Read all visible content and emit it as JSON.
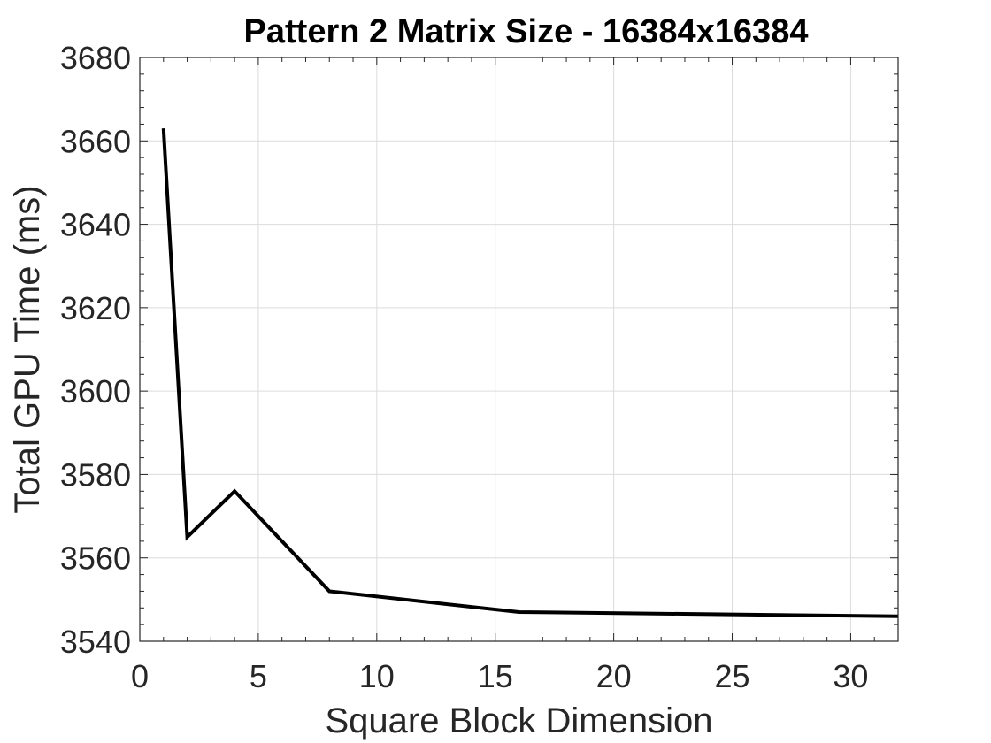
{
  "chart_data": {
    "type": "line",
    "title": "Pattern 2 Matrix Size - 16384x16384",
    "xlabel": "Square Block Dimension",
    "ylabel": "Total GPU Time (ms)",
    "xlim": [
      0,
      32
    ],
    "ylim": [
      3540,
      3680
    ],
    "xticks": [
      0,
      5,
      10,
      15,
      20,
      25,
      30
    ],
    "yticks": [
      3540,
      3560,
      3580,
      3600,
      3620,
      3640,
      3660,
      3680
    ],
    "x_minor_step": 1,
    "y_minor_step": 4,
    "grid": true,
    "legend": "none",
    "series": [
      {
        "color": "#000000",
        "x": [
          1,
          2,
          4,
          8,
          16,
          32
        ],
        "y": [
          3663,
          3565,
          3576,
          3552,
          3547,
          3546
        ]
      }
    ]
  }
}
